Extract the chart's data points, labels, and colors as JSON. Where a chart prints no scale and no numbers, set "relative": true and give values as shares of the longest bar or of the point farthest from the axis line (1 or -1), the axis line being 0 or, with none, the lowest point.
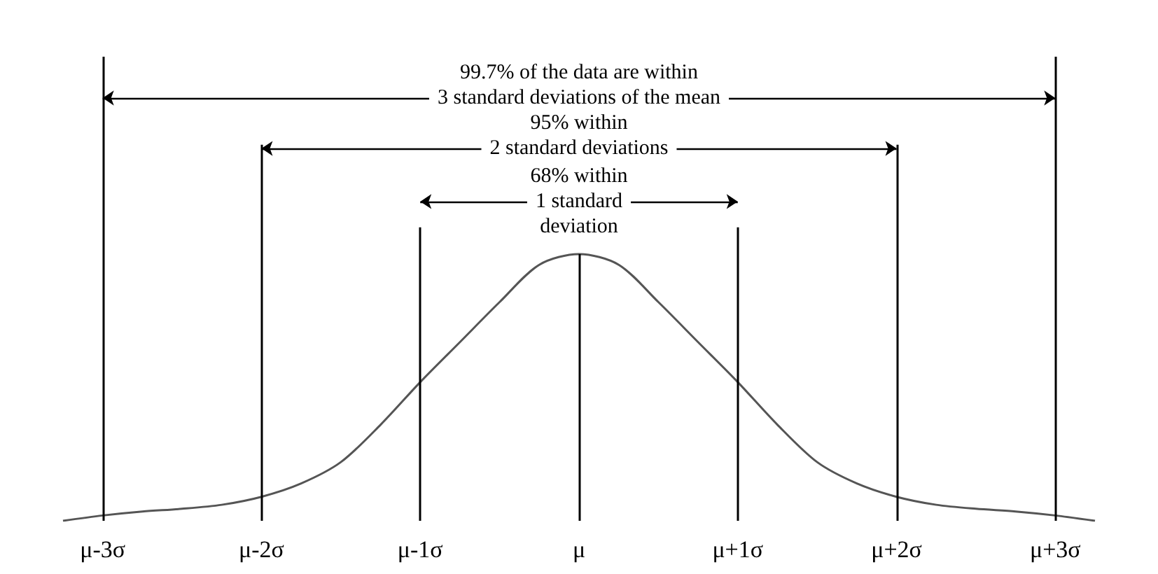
{
  "chart_data": {
    "type": "line",
    "relative": true,
    "color": "#555555",
    "marker": "none",
    "categories": [
      null,
      "μ-3σ",
      null,
      null,
      null,
      "μ-2σ",
      null,
      null,
      null,
      "μ-1σ",
      null,
      null,
      null,
      "μ",
      null,
      null,
      null,
      "μ+1σ",
      null,
      null,
      null,
      "μ+2σ",
      null,
      null,
      null,
      "μ+3σ",
      null
    ],
    "values": [
      0,
      0.02,
      0.035,
      0.045,
      0.06,
      0.09,
      0.14,
      0.22,
      0.36,
      0.52,
      0.67,
      0.82,
      0.96,
      1.0,
      0.96,
      0.82,
      0.67,
      0.52,
      0.36,
      0.22,
      0.14,
      0.09,
      0.06,
      0.045,
      0.035,
      0.02,
      0
    ],
    "ref_lines": [
      {
        "axis": "x",
        "value": "μ-3σ"
      },
      {
        "axis": "x",
        "value": "μ-2σ"
      },
      {
        "axis": "x",
        "value": "μ-1σ"
      },
      {
        "axis": "x",
        "value": "μ"
      },
      {
        "axis": "x",
        "value": "μ+1σ"
      },
      {
        "axis": "x",
        "value": "μ+2σ"
      },
      {
        "axis": "x",
        "value": "μ+3σ"
      }
    ],
    "annotations": [
      "99.7% of the data are within\n3 standard deviations of the mean",
      "95% within\n2 standard deviations",
      "68% within\n1 standard\ndeviation"
    ]
  }
}
